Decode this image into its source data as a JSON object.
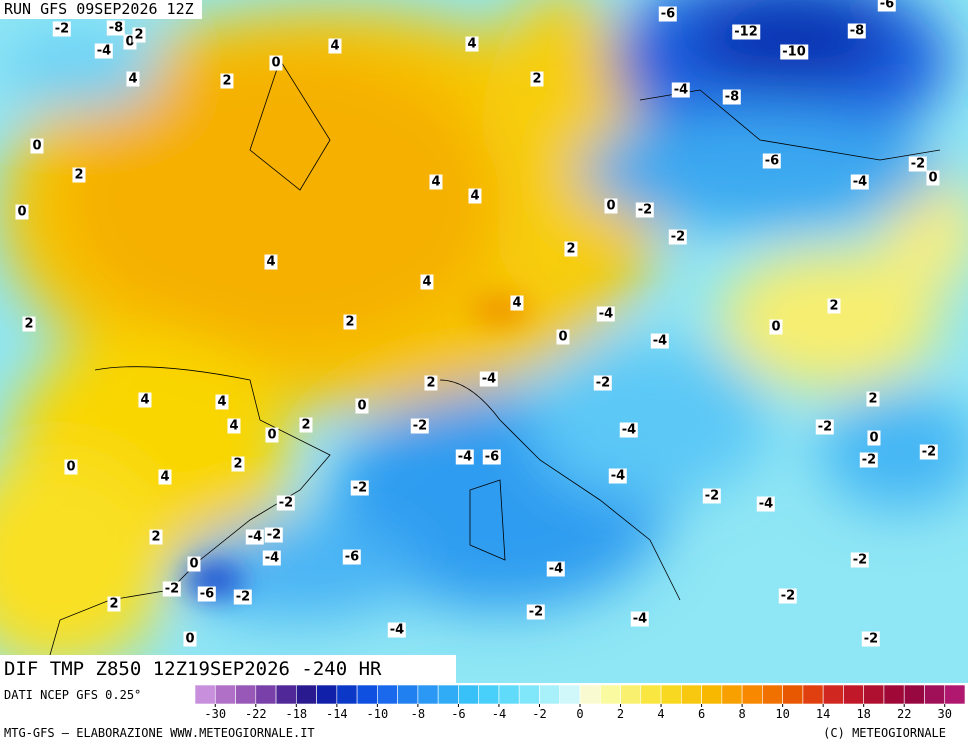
{
  "header": {
    "run": "RUN GFS 09SEP2026 12Z"
  },
  "map": {
    "labels": [
      -2,
      -8,
      0,
      2,
      -4,
      4,
      4,
      0,
      4,
      2,
      2,
      -6,
      -12,
      -8,
      -6,
      -10,
      -4,
      -8,
      0,
      -6,
      -2,
      0,
      -4,
      2,
      4,
      4,
      0,
      0,
      -2,
      -2,
      2,
      4,
      4,
      4,
      -4,
      2,
      2,
      2,
      0,
      0,
      -4,
      -4,
      2,
      -2,
      4,
      4,
      0,
      2,
      4,
      0,
      2,
      -2,
      -4,
      -2,
      0,
      -2,
      -4,
      -6,
      -2,
      0,
      2,
      4,
      -4,
      -2,
      -2,
      -2,
      -4,
      -4,
      -2,
      2,
      -4,
      -6,
      0,
      -2,
      -4,
      -2,
      -6,
      -2,
      -2,
      2,
      -2,
      -4,
      -4,
      0,
      -2
    ]
  },
  "field_title": "DIF TMP Z850 12Z19SEP2026 -240 HR",
  "legend": {
    "source": "DATI NCEP GFS 0.25°",
    "ticks": [
      -30,
      -22,
      -18,
      -14,
      -10,
      -8,
      -6,
      -4,
      -2,
      0,
      2,
      4,
      6,
      8,
      10,
      14,
      18,
      22,
      30
    ]
  },
  "credits": {
    "left": "MTG-GFS — ELABORAZIONE WWW.METEOGIORNALE.IT",
    "right": "(C) METEOGIORNALE"
  }
}
